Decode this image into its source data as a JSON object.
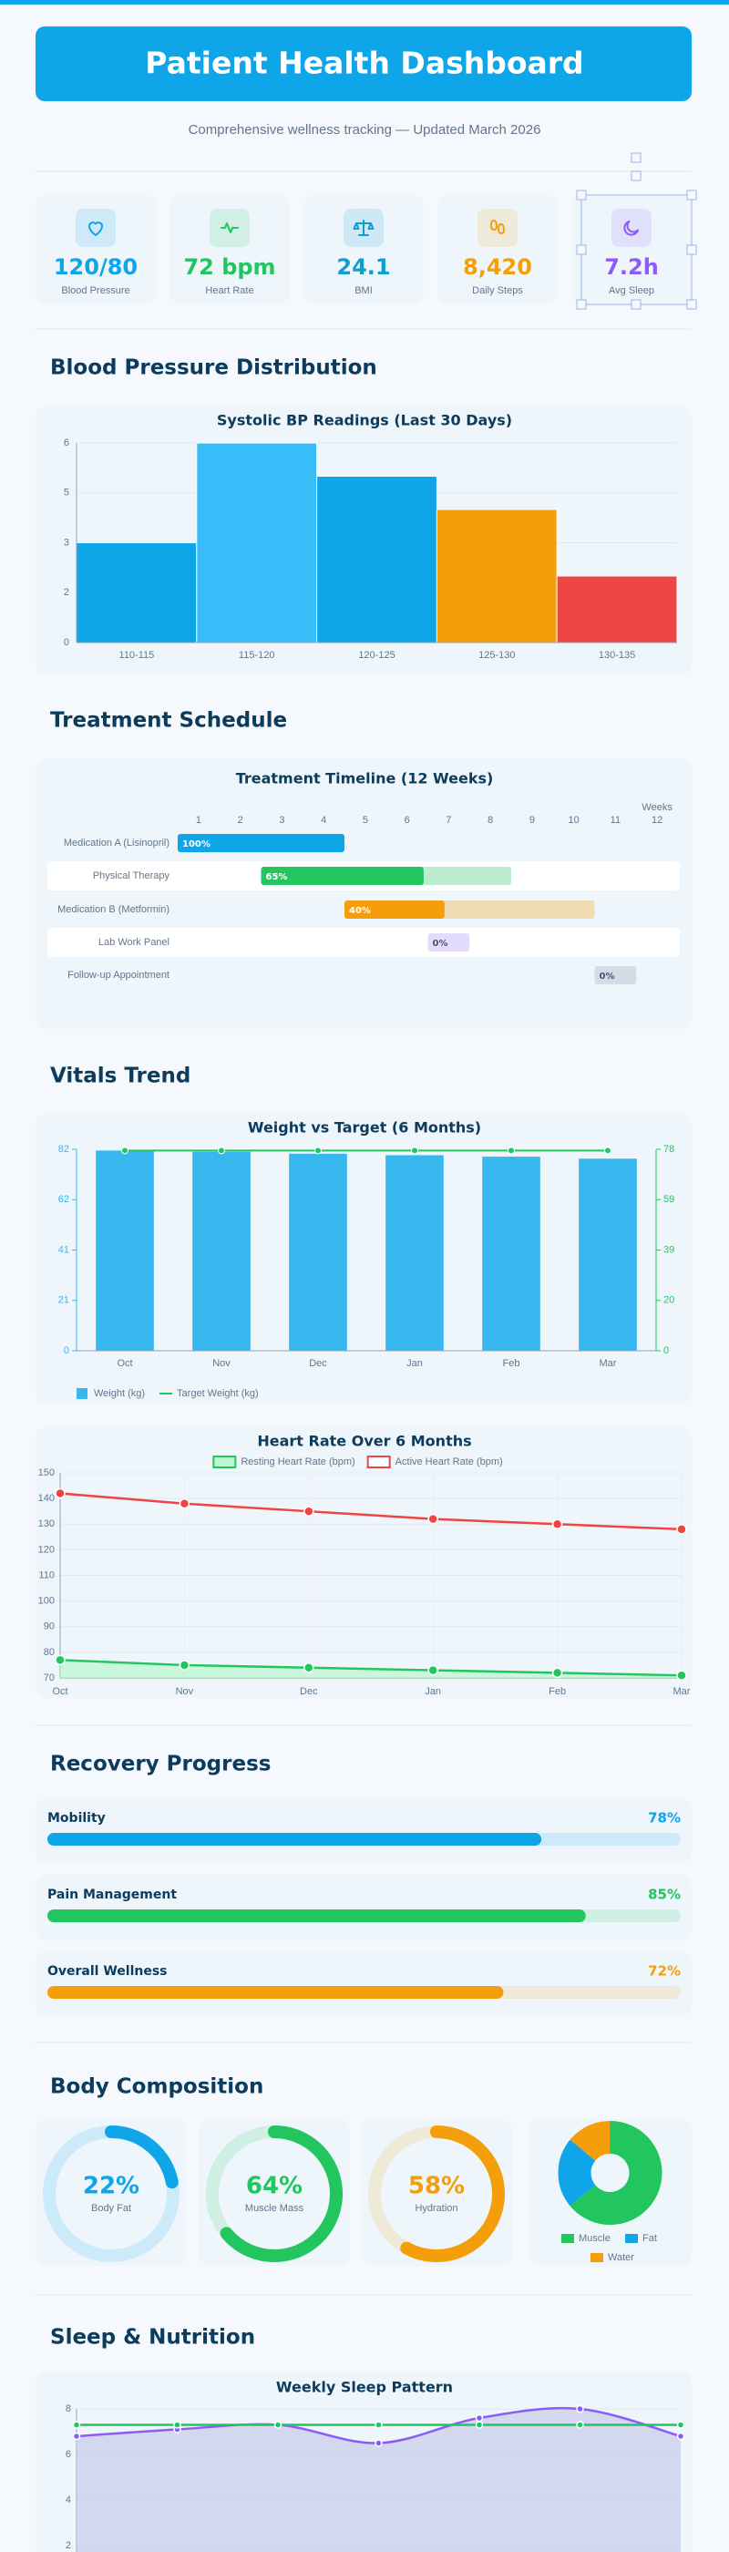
{
  "header": {
    "title": "Patient Health Dashboard",
    "subtitle": "Comprehensive wellness tracking — Updated March 2026"
  },
  "kpis": [
    {
      "value": "120/80",
      "label": "Blood Pressure",
      "color": "#0ea5e9"
    },
    {
      "value": "72 bpm",
      "label": "Heart Rate",
      "color": "#22c55e"
    },
    {
      "value": "24.1",
      "label": "BMI",
      "color": "#0e9fd0"
    },
    {
      "value": "8,420",
      "label": "Daily Steps",
      "color": "#f59e0b"
    },
    {
      "value": "7.2h",
      "label": "Avg Sleep",
      "color": "#8b5cf6"
    }
  ],
  "sections": [
    "Blood Pressure Distribution",
    "Treatment Schedule",
    "Vitals Trend",
    "Recovery Progress",
    "Body Composition",
    "Sleep & Nutrition"
  ],
  "chart_data": [
    {
      "type": "bar",
      "title": "Systolic BP Readings (Last 30 Days)",
      "categories": [
        "110-115",
        "115-120",
        "120-125",
        "125-130",
        "130-135"
      ],
      "values": [
        3,
        6,
        5,
        4,
        2
      ],
      "colors": [
        "#0ea5e9",
        "#38bdf8",
        "#0ea5e9",
        "#f59e0b",
        "#ef4444"
      ],
      "ylim": [
        0,
        6
      ],
      "yticks": [
        0,
        {
          "value": 1.5,
          "label": "2"
        },
        3,
        {
          "value": 4.5,
          "label": "5"
        },
        6
      ],
      "grid": true
    },
    {
      "type": "gantt",
      "title": "Treatment Timeline (12 Weeks)",
      "xlabel": "Weeks",
      "xlim": [
        0,
        12
      ],
      "xticks": [
        {
          "value": 0.5,
          "label": "1"
        },
        {
          "value": 1.5,
          "label": "2"
        },
        {
          "value": 2.5,
          "label": "3"
        },
        {
          "value": 3.5,
          "label": "4"
        },
        {
          "value": 4.5,
          "label": "5"
        },
        {
          "value": 5.5,
          "label": "6"
        },
        {
          "value": 6.5,
          "label": "7"
        },
        {
          "value": 7.5,
          "label": "8"
        },
        {
          "value": 8.5,
          "label": "9"
        },
        {
          "value": 9.5,
          "label": "10"
        },
        {
          "value": 10.5,
          "label": "11"
        },
        {
          "value": 11.5,
          "label": "12"
        }
      ],
      "categories": [
        "Medication A (Lisinopril)",
        "Physical Therapy",
        "Medication B (Metformin)",
        "Lab Work Panel",
        "Follow-up Appointment"
      ],
      "start": [
        0,
        2,
        4,
        6,
        10
      ],
      "end": [
        4,
        8,
        10,
        7,
        11
      ],
      "values": [
        100,
        65,
        40,
        0,
        0
      ],
      "value_labels": [
        "100%",
        "65%",
        "40%",
        "0%",
        "0%"
      ],
      "colors": [
        "#0ea5e9",
        "#22c55e",
        "#f59e0b",
        "#a78bfa",
        "#94a3b8"
      ]
    },
    {
      "type": "bar",
      "title": "Weight vs Target (6 Months)",
      "categories": [
        "Oct",
        "Nov",
        "Dec",
        "Jan",
        "Feb",
        "Mar"
      ],
      "series": [
        {
          "name": "Weight (kg)",
          "color": "#38b6ee",
          "values": [
            81.5,
            81,
            80.2,
            79.6,
            79,
            78.2
          ]
        },
        {
          "name": "Target Weight (kg)",
          "type": "line",
          "axis": "y2",
          "color": "#22c55e",
          "values": [
            77.5,
            77.5,
            77.5,
            77.5,
            77.5,
            77.5
          ]
        }
      ],
      "ylim": [
        0,
        82
      ],
      "yticks": [
        0,
        {
          "value": 20.5,
          "label": "21"
        },
        41,
        {
          "value": 61.5,
          "label": "62"
        },
        82
      ],
      "y2lim": [
        0,
        78
      ],
      "y2ticks": [
        0,
        {
          "value": 19.5,
          "label": "20"
        },
        39,
        {
          "value": 58.5,
          "label": "59"
        },
        78
      ],
      "legend": "bottom"
    },
    {
      "type": "line",
      "title": "Heart Rate Over 6 Months",
      "categories": [
        "Oct",
        "Nov",
        "Dec",
        "Jan",
        "Feb",
        "Mar"
      ],
      "series": [
        {
          "name": "Resting Heart Rate (bpm)",
          "color": "#22c55e",
          "fill": "#bbf7d0",
          "values": [
            77,
            75,
            74,
            73,
            72,
            71
          ]
        },
        {
          "name": "Active Heart Rate (bpm)",
          "color": "#ef4444",
          "values": [
            142,
            138,
            135,
            132,
            130,
            128
          ]
        }
      ],
      "ylim": [
        70,
        150
      ],
      "yticks": [
        70,
        80,
        90,
        100,
        110,
        120,
        130,
        140,
        150
      ],
      "grid": "both",
      "legend": "top"
    },
    {
      "type": "progress",
      "categories": [
        "Mobility",
        "Pain Management",
        "Overall Wellness"
      ],
      "values": [
        78,
        85,
        72
      ],
      "value_labels": [
        "78%",
        "85%",
        "72%"
      ],
      "colors": [
        "#0ea5e9",
        "#22c55e",
        "#f59e0b"
      ]
    },
    {
      "type": "gauge",
      "categories": [
        "Body Fat",
        "Muscle Mass",
        "Hydration"
      ],
      "values": [
        22,
        64,
        58
      ],
      "value_labels": [
        "22%",
        "64%",
        "58%"
      ],
      "colors": [
        "#0ea5e9",
        "#22c55e",
        "#f59e0b"
      ]
    },
    {
      "type": "doughnut",
      "categories": [
        "Muscle",
        "Fat",
        "Water"
      ],
      "values": [
        64,
        22,
        14
      ],
      "colors": [
        "#22c55e",
        "#0ea5e9",
        "#f59e0b"
      ]
    },
    {
      "type": "line",
      "title": "Weekly Sleep Pattern",
      "categories": [
        null,
        null,
        null,
        null,
        null,
        null,
        null
      ],
      "series": [
        {
          "color": "#8b5cf6",
          "fill": "#c9cdea",
          "smooth": true,
          "values": [
            6.8,
            7.1,
            7.3,
            6.5,
            7.6,
            8.0,
            6.8
          ]
        },
        {
          "color": "#22c55e",
          "values": [
            7.3,
            7.3,
            7.3,
            7.3,
            7.3,
            7.3,
            7.3
          ]
        }
      ],
      "ylim": [
        0,
        8
      ],
      "yticks": [
        2,
        4,
        6,
        8
      ],
      "grid": "y"
    }
  ]
}
